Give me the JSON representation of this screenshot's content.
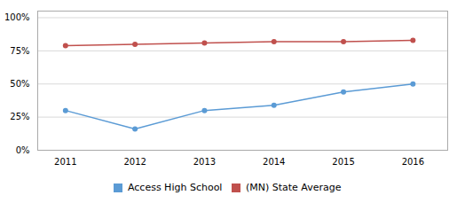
{
  "chart_data": {
    "type": "line",
    "x": [
      2011,
      2012,
      2013,
      2014,
      2015,
      2016
    ],
    "series": [
      {
        "name": "Access High School",
        "color": "#5b9bd5",
        "values": [
          0.3,
          0.16,
          0.3,
          0.34,
          0.44,
          0.5
        ]
      },
      {
        "name": "(MN) State Average",
        "color": "#c0504d",
        "values": [
          0.79,
          0.8,
          0.81,
          0.82,
          0.82,
          0.83
        ]
      }
    ],
    "xlim": [
      2010.6,
      2016.5
    ],
    "xticks": [
      2011,
      2012,
      2013,
      2014,
      2015,
      2016
    ],
    "ylim": [
      0,
      1.05
    ],
    "yticks": [
      {
        "value": 0,
        "label": "0%"
      },
      {
        "value": 0.25,
        "label": "25%"
      },
      {
        "value": 0.5,
        "label": "50%"
      },
      {
        "value": 0.75,
        "label": "75%"
      },
      {
        "value": 1.0,
        "label": "100%"
      }
    ],
    "grid": true,
    "legend": "bottom",
    "marker": "circle"
  }
}
